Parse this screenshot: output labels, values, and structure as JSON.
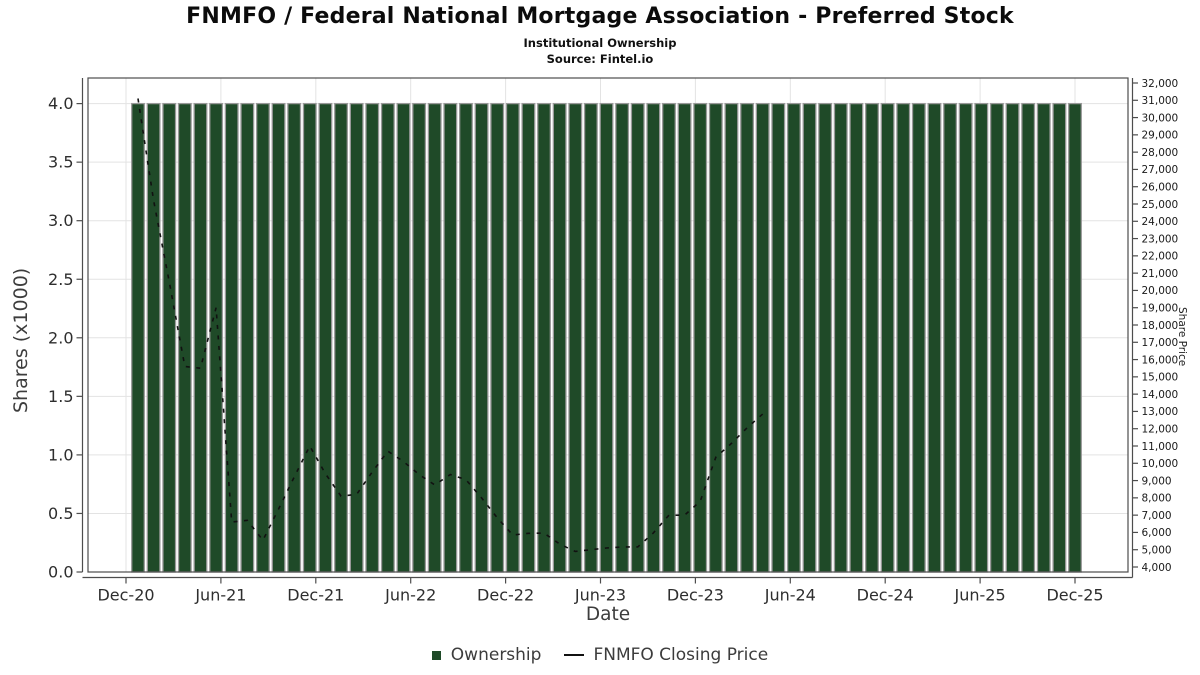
{
  "header": {
    "title": "FNMFO / Federal National Mortgage Association - Preferred Stock",
    "subtitle": "Institutional Ownership",
    "source": "Source: Fintel.io"
  },
  "legend": {
    "items": [
      {
        "label": "Ownership",
        "marker": "square",
        "color": "#1f4a28"
      },
      {
        "label": "FNMFO Closing Price",
        "marker": "line",
        "color": "#111111"
      }
    ]
  },
  "colors": {
    "bar_fill": "#1f4a28",
    "bar_edge": "#999999",
    "price_line": "#111111",
    "grid": "#e3e3e3",
    "frame": "#4d4d4d",
    "tick_label": "#2e2e2e",
    "right_tick_label": "#1a1a1a"
  },
  "chart_data": {
    "type": "bar",
    "title": "FNMFO / Federal National Mortgage Association - Preferred Stock",
    "subtitle": "Institutional Ownership",
    "xlabel": "Date",
    "ylabel_left": "Shares (x1000)",
    "ylabel_right": "Share Price",
    "grid": true,
    "legend_position": "bottom",
    "x_tick_labels": [
      "Dec-20",
      "Jun-21",
      "Dec-21",
      "Jun-22",
      "Dec-22",
      "Jun-23",
      "Dec-23",
      "Jun-24",
      "Dec-24",
      "Jun-25",
      "Dec-25"
    ],
    "left_axis": {
      "min": 0.0,
      "max": 4.22,
      "tick_step": 0.5,
      "ticks": [
        0.0,
        0.5,
        1.0,
        1.5,
        2.0,
        2.5,
        3.0,
        3.5,
        4.0
      ]
    },
    "right_axis": {
      "min": 4000,
      "max": 32000,
      "tick_step": 1000
    },
    "categories": [
      "Dec-20",
      "Jan-21",
      "Feb-21",
      "Mar-21",
      "Apr-21",
      "May-21",
      "Jun-21",
      "Jul-21",
      "Aug-21",
      "Sep-21",
      "Oct-21",
      "Nov-21",
      "Dec-21",
      "Jan-22",
      "Feb-22",
      "Mar-22",
      "Apr-22",
      "May-22",
      "Jun-22",
      "Jul-22",
      "Aug-22",
      "Sep-22",
      "Oct-22",
      "Nov-22",
      "Dec-22",
      "Jan-23",
      "Feb-23",
      "Mar-23",
      "Apr-23",
      "May-23",
      "Jun-23",
      "Jul-23",
      "Aug-23",
      "Sep-23",
      "Oct-23",
      "Nov-23",
      "Dec-23",
      "Jan-24",
      "Feb-24",
      "Mar-24",
      "Apr-24",
      "May-24",
      "Jun-24",
      "Jul-24",
      "Aug-24",
      "Sep-24",
      "Oct-24",
      "Nov-24",
      "Dec-24",
      "Jan-25",
      "Feb-25",
      "Mar-25",
      "Apr-25",
      "May-25",
      "Jun-25",
      "Jul-25",
      "Aug-25",
      "Sep-25",
      "Oct-25",
      "Nov-25",
      "Dec-25"
    ],
    "series": [
      {
        "name": "Ownership",
        "type": "bar",
        "axis": "left",
        "units": "shares_x1000",
        "values": [
          4,
          4,
          4,
          4,
          4,
          4,
          4,
          4,
          4,
          4,
          4,
          4,
          4,
          4,
          4,
          4,
          4,
          4,
          4,
          4,
          4,
          4,
          4,
          4,
          4,
          4,
          4,
          4,
          4,
          4,
          4,
          4,
          4,
          4,
          4,
          4,
          4,
          4,
          4,
          4,
          4,
          4,
          4,
          4,
          4,
          4,
          4,
          4,
          4,
          4,
          4,
          4,
          4,
          4,
          4,
          4,
          4,
          4,
          4,
          4,
          4
        ]
      },
      {
        "name": "FNMFO Closing Price",
        "type": "line",
        "style": "dashed",
        "axis": "right",
        "points": [
          [
            "Dec-20",
            31100
          ],
          [
            "Jan-21",
            25200
          ],
          [
            "Feb-21",
            20500
          ],
          [
            "Mar-21",
            15600
          ],
          [
            "Apr-21",
            15500
          ],
          [
            "May-21",
            19000
          ],
          [
            "Jun-21",
            6600
          ],
          [
            "Jul-21",
            6700
          ],
          [
            "Aug-21",
            5550
          ],
          [
            "Sep-21",
            7350
          ],
          [
            "Oct-21",
            9200
          ],
          [
            "Nov-21",
            11000
          ],
          [
            "Dec-21",
            9400
          ],
          [
            "Jan-22",
            8100
          ],
          [
            "Feb-22",
            8200
          ],
          [
            "Mar-22",
            9500
          ],
          [
            "Apr-22",
            10700
          ],
          [
            "May-22",
            10100
          ],
          [
            "Jun-22",
            9350
          ],
          [
            "Jul-22",
            8750
          ],
          [
            "Aug-22",
            9350
          ],
          [
            "Sep-22",
            9050
          ],
          [
            "Oct-22",
            8000
          ],
          [
            "Nov-22",
            6850
          ],
          [
            "Dec-22",
            5850
          ],
          [
            "Jan-23",
            5950
          ],
          [
            "Feb-23",
            5960
          ],
          [
            "Mar-23",
            5330
          ],
          [
            "Apr-23",
            4900
          ],
          [
            "May-23",
            5000
          ],
          [
            "Jun-23",
            5100
          ],
          [
            "Jul-23",
            5160
          ],
          [
            "Aug-23",
            5160
          ],
          [
            "Sep-23",
            5970
          ],
          [
            "Oct-23",
            7000
          ],
          [
            "Nov-23",
            7000
          ],
          [
            "Dec-23",
            7800
          ],
          [
            "Jan-24",
            10350
          ],
          [
            "Feb-24",
            11150
          ],
          [
            "Mar-24",
            12050
          ],
          [
            "Apr-24",
            12850
          ]
        ]
      }
    ]
  }
}
